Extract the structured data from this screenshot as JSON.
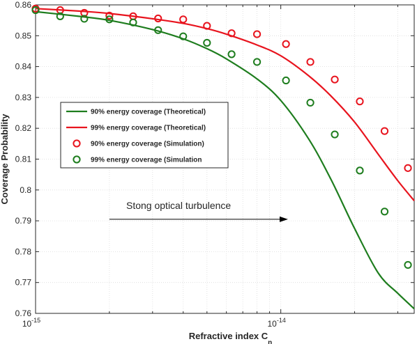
{
  "chart_data": {
    "type": "line",
    "xlabel": "Refractive index C",
    "xlabel_sub": "n",
    "ylabel": "Coverage Probability",
    "x_scale": "log",
    "xlim": [
      1e-15,
      3.5e-14
    ],
    "ylim": [
      0.76,
      0.86
    ],
    "grid": true,
    "legend_position": "left",
    "x_ticks": [
      {
        "value": 1e-15,
        "base": "10",
        "exp": "-15"
      },
      {
        "value": 1e-14,
        "base": "10",
        "exp": "-14"
      }
    ],
    "y_ticks": [
      "0.76",
      "0.77",
      "0.78",
      "0.79",
      "0.8",
      "0.81",
      "0.82",
      "0.83",
      "0.84",
      "0.85",
      "0.86"
    ],
    "series": [
      {
        "name": "90% energy coverage (Theoretical)",
        "style": "line",
        "color": "#1e7d1e",
        "x": [
          1e-15,
          1.5e-15,
          2e-15,
          3e-15,
          4e-15,
          5e-15,
          6e-15,
          8e-15,
          1e-14,
          1.3e-14,
          1.6e-14,
          2e-14,
          2.5e-14,
          3e-14,
          3.5e-14
        ],
        "y": [
          0.8578,
          0.8563,
          0.855,
          0.852,
          0.849,
          0.8458,
          0.8425,
          0.836,
          0.829,
          0.8165,
          0.8035,
          0.7875,
          0.773,
          0.7665,
          0.7615
        ]
      },
      {
        "name": "99% energy coverage (Theoretical)",
        "style": "line",
        "color": "#e8141e",
        "x": [
          1e-15,
          1.5e-15,
          2e-15,
          3e-15,
          4e-15,
          5e-15,
          6e-15,
          8e-15,
          1e-14,
          1.3e-14,
          1.6e-14,
          2e-14,
          2.5e-14,
          3e-14,
          3.5e-14
        ],
        "y": [
          0.8588,
          0.858,
          0.8572,
          0.8555,
          0.854,
          0.8523,
          0.8505,
          0.847,
          0.8435,
          0.837,
          0.8305,
          0.822,
          0.8115,
          0.803,
          0.7965
        ]
      },
      {
        "name": "90% energy coverage (Simulation)",
        "style": "marker",
        "color": "#e8141e",
        "x": [
          1e-15,
          1.26e-15,
          1.58e-15,
          2e-15,
          2.5e-15,
          3.16e-15,
          4e-15,
          5e-15,
          6.3e-15,
          8e-15,
          1.05e-14,
          1.32e-14,
          1.66e-14,
          2.1e-14,
          2.65e-14,
          3.3e-14
        ],
        "y": [
          0.8588,
          0.8583,
          0.8574,
          0.8565,
          0.8563,
          0.8556,
          0.8553,
          0.8532,
          0.8508,
          0.8505,
          0.8473,
          0.8415,
          0.8358,
          0.8287,
          0.8191,
          0.8071
        ]
      },
      {
        "name": "99% energy coverage (Simulation",
        "style": "marker",
        "color": "#1e7d1e",
        "x": [
          1e-15,
          1.26e-15,
          1.58e-15,
          2e-15,
          2.5e-15,
          3.16e-15,
          4e-15,
          5e-15,
          6.3e-15,
          8e-15,
          1.05e-14,
          1.32e-14,
          1.66e-14,
          2.1e-14,
          2.65e-14,
          3.3e-14
        ],
        "y": [
          0.8583,
          0.8563,
          0.8555,
          0.8553,
          0.8543,
          0.8518,
          0.8498,
          0.8477,
          0.844,
          0.8415,
          0.8355,
          0.8283,
          0.818,
          0.8063,
          0.793,
          0.7757
        ]
      }
    ],
    "annotation": {
      "text": "Stong optical turbulence",
      "arrow_from_x": 2e-15,
      "arrow_to_x": 1.07e-14,
      "arrow_y": 0.7905
    }
  }
}
